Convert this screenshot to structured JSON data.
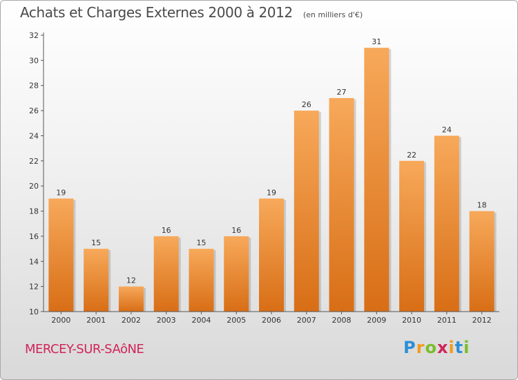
{
  "header": {
    "title": "Achats et Charges Externes 2000 à 2012",
    "subtitle": "(en milliers d'€)"
  },
  "footer": {
    "place": "MERCEY-SUR-SAôNE",
    "logo_text": "Proxiti"
  },
  "colors": {
    "bar_top": "#f7a95a",
    "bar_bottom": "#d86e16",
    "place": "#d1245a"
  },
  "chart_data": {
    "type": "bar",
    "categories": [
      "2000",
      "2001",
      "2002",
      "2003",
      "2004",
      "2005",
      "2006",
      "2007",
      "2008",
      "2009",
      "2010",
      "2011",
      "2012"
    ],
    "values": [
      19,
      15,
      12,
      16,
      15,
      16,
      19,
      26,
      27,
      31,
      22,
      24,
      18
    ],
    "title": "Achats et Charges Externes 2000 à 2012",
    "subtitle": "(en milliers d'€)",
    "ylim": [
      10,
      32
    ],
    "yticks": [
      10,
      12,
      14,
      16,
      18,
      20,
      22,
      24,
      26,
      28,
      30,
      32
    ],
    "grid": false,
    "data_labels": true
  }
}
